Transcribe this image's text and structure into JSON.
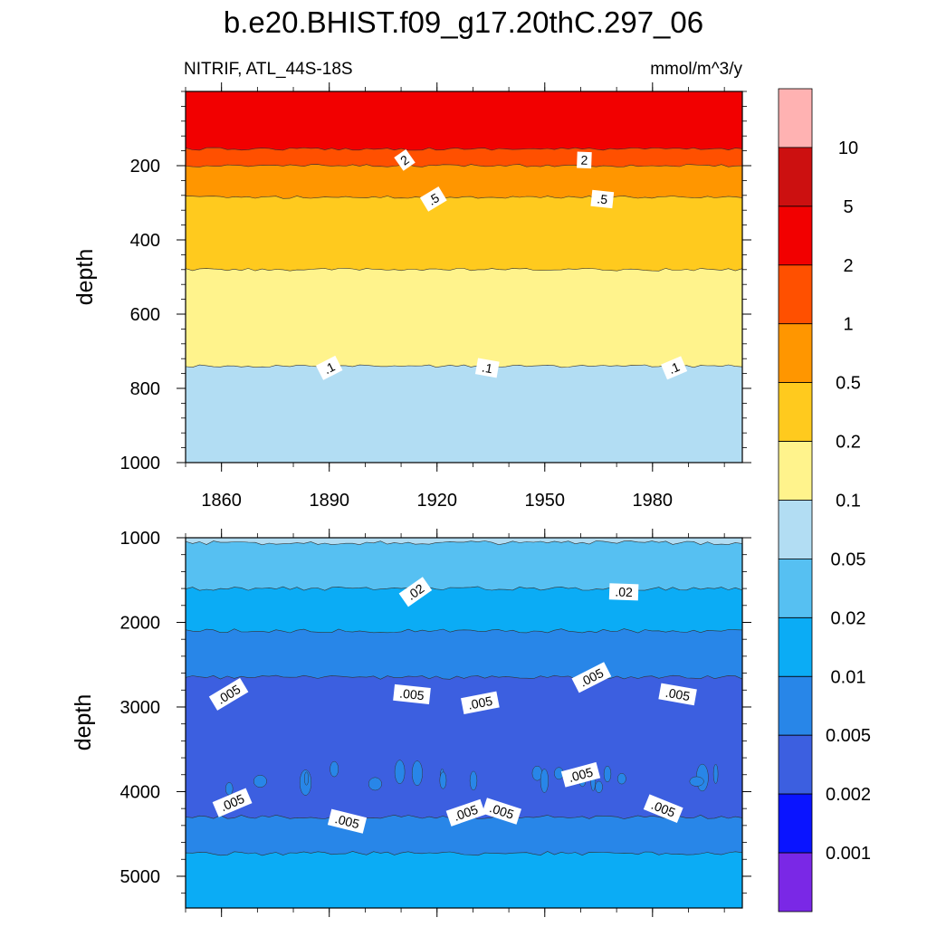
{
  "figure_title": "b.e20.BHIST.f09_g17.20thC.297_06",
  "chart_data": [
    {
      "type": "contour",
      "left_subtitle": "NITRIF, ATL_44S-18S",
      "right_subtitle": "mmol/m^3/y",
      "xlabel": "",
      "ylabel": "depth",
      "xlim": [
        1850,
        2005
      ],
      "ylim": [
        1000,
        0
      ],
      "x_ticks": [
        1860,
        1890,
        1920,
        1950,
        1980
      ],
      "y_ticks": [
        200,
        400,
        600,
        800,
        1000
      ],
      "bands": [
        {
          "from_depth": 0,
          "to_depth": 155,
          "color": "#f20000",
          "range": "2-5"
        },
        {
          "from_depth": 155,
          "to_depth": 200,
          "color": "#ff5000",
          "range": "1-2"
        },
        {
          "from_depth": 200,
          "to_depth": 285,
          "color": "#ff9600",
          "range": "0.5-1"
        },
        {
          "from_depth": 285,
          "to_depth": 480,
          "color": "#ffca1e",
          "range": "0.2-0.5"
        },
        {
          "from_depth": 480,
          "to_depth": 740,
          "color": "#fff38c",
          "range": "0.1-0.2"
        },
        {
          "from_depth": 740,
          "to_depth": 1000,
          "color": "#b2ddf3",
          "range": "0.05-0.1"
        }
      ],
      "contour_labels": [
        {
          "text": "2",
          "year": 1911,
          "depth": 185
        },
        {
          "text": "2",
          "year": 1961,
          "depth": 185
        },
        {
          "text": ".5",
          "year": 1919,
          "depth": 290
        },
        {
          "text": ".5",
          "year": 1966,
          "depth": 290
        },
        {
          "text": ".1",
          "year": 1890,
          "depth": 745
        },
        {
          "text": ".1",
          "year": 1934,
          "depth": 745
        },
        {
          "text": ".1",
          "year": 1986,
          "depth": 745
        }
      ]
    },
    {
      "type": "contour",
      "xlabel": "",
      "ylabel": "depth",
      "xlim": [
        1850,
        2005
      ],
      "ylim": [
        5375,
        1000
      ],
      "y_ticks": [
        1000,
        2000,
        3000,
        4000,
        5000
      ],
      "bands": [
        {
          "from_depth": 1000,
          "to_depth": 1060,
          "color": "#b2ddf3",
          "range": "0.05-0.1"
        },
        {
          "from_depth": 1060,
          "to_depth": 1600,
          "color": "#56c0f2",
          "range": "0.02-0.05"
        },
        {
          "from_depth": 1600,
          "to_depth": 2100,
          "color": "#0bacf5",
          "range": "0.01-0.02"
        },
        {
          "from_depth": 2100,
          "to_depth": 2650,
          "color": "#2886e8",
          "range": "0.005-0.01"
        },
        {
          "from_depth": 2650,
          "to_depth": 4300,
          "color": "#3c5fe0",
          "range": "0.002-0.005"
        },
        {
          "from_depth": 4300,
          "to_depth": 4730,
          "color": "#2886e8",
          "range": "0.005-0.01"
        },
        {
          "from_depth": 4730,
          "to_depth": 5375,
          "color": "#0bacf5",
          "range": "0.01-0.02"
        }
      ],
      "contour_labels": [
        {
          "text": ".02",
          "year": 1914,
          "depth": 1640
        },
        {
          "text": ".02",
          "year": 1972,
          "depth": 1640
        },
        {
          "text": ".005",
          "year": 1862,
          "depth": 2850
        },
        {
          "text": ".005",
          "year": 1913,
          "depth": 2850
        },
        {
          "text": ".005",
          "year": 1963,
          "depth": 2650
        },
        {
          "text": ".005",
          "year": 1987,
          "depth": 2850
        },
        {
          "text": ".005",
          "year": 1863,
          "depth": 4130
        },
        {
          "text": ".005",
          "year": 1895,
          "depth": 4350
        },
        {
          "text": ".005",
          "year": 1928,
          "depth": 4250
        },
        {
          "text": ".005",
          "year": 1938,
          "depth": 4230
        },
        {
          "text": ".005",
          "year": 1960,
          "depth": 3800
        },
        {
          "text": ".005",
          "year": 1983,
          "depth": 4200
        },
        {
          "text": ".005",
          "year": 1932,
          "depth": 2950
        }
      ]
    }
  ],
  "colorbar": {
    "levels": [
      "10",
      "5",
      "2",
      "1",
      "0.5",
      "0.2",
      "0.1",
      "0.05",
      "0.02",
      "0.01",
      "0.005",
      "0.002",
      "0.001"
    ],
    "colors": [
      "#ffb2b2",
      "#cc1010",
      "#f20000",
      "#ff5000",
      "#ff9600",
      "#ffca1e",
      "#fff38c",
      "#b2ddf3",
      "#56c0f2",
      "#0bacf5",
      "#2886e8",
      "#3c5fe0",
      "#0a14ff",
      "#7a28e6"
    ]
  }
}
